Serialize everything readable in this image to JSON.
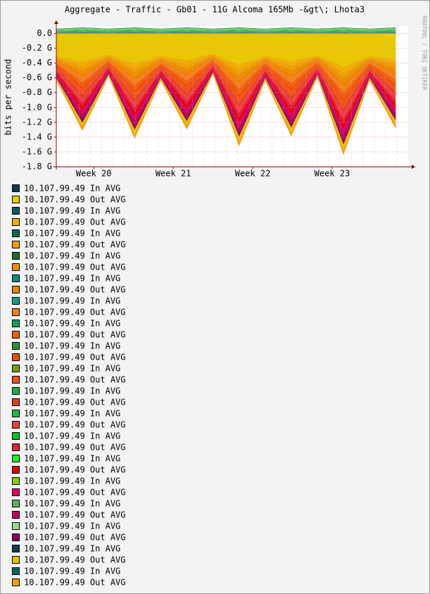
{
  "chart_data": {
    "type": "area",
    "stacked": true,
    "title": "Aggregate - Traffic - Gb01 - 11G Alcoma 165Mb -&gt\\; Lhota3",
    "ylabel": "bits per second",
    "watermark": "RRDTOOL / TOBI OETIKER",
    "x": [
      0,
      2.3,
      4.6,
      6.9,
      9.2,
      11.5,
      13.8,
      16.1,
      18.4,
      20.7,
      23,
      25.3,
      27.6,
      29.9
    ],
    "xlim": [
      0,
      31
    ],
    "xticks": [
      {
        "value": 3.3,
        "label": "Week 20"
      },
      {
        "value": 10.3,
        "label": "Week 21"
      },
      {
        "value": 17.3,
        "label": "Week 22"
      },
      {
        "value": 24.3,
        "label": "Week 23"
      }
    ],
    "ylim": [
      -1.8,
      0.1
    ],
    "yticks": [
      {
        "value": 0,
        "label": "0.0"
      },
      {
        "value": -0.2,
        "label": "-0.2 G"
      },
      {
        "value": -0.4,
        "label": "-0.4 G"
      },
      {
        "value": -0.6,
        "label": "-0.6 G"
      },
      {
        "value": -0.8,
        "label": "-0.8 G"
      },
      {
        "value": -1.0,
        "label": "-1.0 G"
      },
      {
        "value": -1.2,
        "label": "-1.2 G"
      },
      {
        "value": -1.4,
        "label": "-1.4 G"
      },
      {
        "value": -1.6,
        "label": "-1.6 G"
      },
      {
        "value": -1.8,
        "label": "-1.8 G"
      }
    ],
    "grid": true,
    "series": [
      {
        "name": "10.107.99.49 In AVG",
        "color": "#0a3d5c",
        "values": [
          0.0035,
          0.0045,
          0.0035,
          0.0045,
          0.0035,
          0.0045,
          0.0035,
          0.0045,
          0.0035,
          0.0045,
          0.0035,
          0.0045,
          0.0035,
          0.0045
        ]
      },
      {
        "name": "10.107.99.49 Out AVG",
        "color": "#e8c800",
        "values": [
          -0.3,
          -0.38,
          -0.28,
          -0.4,
          -0.3,
          -0.36,
          -0.27,
          -0.42,
          -0.3,
          -0.37,
          -0.29,
          -0.45,
          -0.3,
          -0.35
        ]
      },
      {
        "name": "10.107.99.49 In AVG",
        "color": "#0c5a60",
        "values": [
          0.0035,
          0.0045,
          0.0035,
          0.0045,
          0.0035,
          0.0045,
          0.0035,
          0.0045,
          0.0035,
          0.0045,
          0.0035,
          0.0045,
          0.0035,
          0.0045
        ]
      },
      {
        "name": "10.107.99.49 Out AVG",
        "color": "#f0b000",
        "values": [
          -0.02,
          -0.055,
          -0.018,
          -0.06,
          -0.02,
          -0.055,
          -0.017,
          -0.065,
          -0.02,
          -0.06,
          -0.018,
          -0.07,
          -0.02,
          -0.055
        ]
      },
      {
        "name": "10.107.99.49 In AVG",
        "color": "#106a5a",
        "values": [
          0.0035,
          0.0045,
          0.0035,
          0.0045,
          0.0035,
          0.0045,
          0.0035,
          0.0045,
          0.0035,
          0.0045,
          0.0035,
          0.0045,
          0.0035,
          0.0045
        ]
      },
      {
        "name": "10.107.99.49 Out AVG",
        "color": "#f0a000",
        "values": [
          -0.02,
          -0.055,
          -0.018,
          -0.06,
          -0.02,
          -0.055,
          -0.017,
          -0.065,
          -0.02,
          -0.06,
          -0.018,
          -0.07,
          -0.02,
          -0.055
        ]
      },
      {
        "name": "10.107.99.49 In AVG",
        "color": "#1a6e2e",
        "values": [
          0.0035,
          0.0045,
          0.0035,
          0.0045,
          0.0035,
          0.0045,
          0.0035,
          0.0045,
          0.0035,
          0.0045,
          0.0035,
          0.0045,
          0.0035,
          0.0045
        ]
      },
      {
        "name": "10.107.99.49 Out AVG",
        "color": "#e89000",
        "values": [
          -0.02,
          -0.055,
          -0.018,
          -0.06,
          -0.02,
          -0.055,
          -0.017,
          -0.065,
          -0.02,
          -0.06,
          -0.018,
          -0.07,
          -0.02,
          -0.055
        ]
      },
      {
        "name": "10.107.99.49 In AVG",
        "color": "#108a7a",
        "values": [
          0.0035,
          0.0045,
          0.0035,
          0.0045,
          0.0035,
          0.0045,
          0.0035,
          0.0045,
          0.0035,
          0.0045,
          0.0035,
          0.0045,
          0.0035,
          0.0045
        ]
      },
      {
        "name": "10.107.99.49 Out AVG",
        "color": "#f08000",
        "values": [
          -0.02,
          -0.055,
          -0.018,
          -0.06,
          -0.02,
          -0.055,
          -0.017,
          -0.065,
          -0.02,
          -0.06,
          -0.018,
          -0.07,
          -0.02,
          -0.055
        ]
      },
      {
        "name": "10.107.99.49 In AVG",
        "color": "#10a080",
        "values": [
          0.0035,
          0.0045,
          0.0035,
          0.0045,
          0.0035,
          0.0045,
          0.0035,
          0.0045,
          0.0035,
          0.0045,
          0.0035,
          0.0045,
          0.0035,
          0.0045
        ]
      },
      {
        "name": "10.107.99.49 Out AVG",
        "color": "#f08020",
        "values": [
          -0.02,
          -0.055,
          -0.018,
          -0.06,
          -0.02,
          -0.055,
          -0.017,
          -0.065,
          -0.02,
          -0.06,
          -0.018,
          -0.07,
          -0.02,
          -0.055
        ]
      },
      {
        "name": "10.107.99.49 In AVG",
        "color": "#10a060",
        "values": [
          0.0035,
          0.0045,
          0.0035,
          0.0045,
          0.0035,
          0.0045,
          0.0035,
          0.0045,
          0.0035,
          0.0045,
          0.0035,
          0.0045,
          0.0035,
          0.0045
        ]
      },
      {
        "name": "10.107.99.49 Out AVG",
        "color": "#f06010",
        "values": [
          -0.02,
          -0.055,
          -0.018,
          -0.06,
          -0.02,
          -0.055,
          -0.017,
          -0.065,
          -0.02,
          -0.06,
          -0.018,
          -0.07,
          -0.02,
          -0.055
        ]
      },
      {
        "name": "10.107.99.49 In AVG",
        "color": "#309030",
        "values": [
          0.0035,
          0.0045,
          0.0035,
          0.0045,
          0.0035,
          0.0045,
          0.0035,
          0.0045,
          0.0035,
          0.0045,
          0.0035,
          0.0045,
          0.0035,
          0.0045
        ]
      },
      {
        "name": "10.107.99.49 Out AVG",
        "color": "#f05000",
        "values": [
          -0.02,
          -0.055,
          -0.018,
          -0.06,
          -0.02,
          -0.055,
          -0.017,
          -0.065,
          -0.02,
          -0.06,
          -0.018,
          -0.07,
          -0.02,
          -0.055
        ]
      },
      {
        "name": "10.107.99.49 In AVG",
        "color": "#70a010",
        "values": [
          0.0035,
          0.0045,
          0.0035,
          0.0045,
          0.0035,
          0.0045,
          0.0035,
          0.0045,
          0.0035,
          0.0045,
          0.0035,
          0.0045,
          0.0035,
          0.0045
        ]
      },
      {
        "name": "10.107.99.49 Out AVG",
        "color": "#f05020",
        "values": [
          -0.02,
          -0.055,
          -0.018,
          -0.06,
          -0.02,
          -0.055,
          -0.017,
          -0.065,
          -0.02,
          -0.06,
          -0.018,
          -0.07,
          -0.02,
          -0.055
        ]
      },
      {
        "name": "10.107.99.49 In AVG",
        "color": "#20b040",
        "values": [
          0.0035,
          0.0045,
          0.0035,
          0.0045,
          0.0035,
          0.0045,
          0.0035,
          0.0045,
          0.0035,
          0.0045,
          0.0035,
          0.0045,
          0.0035,
          0.0045
        ]
      },
      {
        "name": "10.107.99.49 Out AVG",
        "color": "#e04020",
        "values": [
          -0.02,
          -0.055,
          -0.018,
          -0.06,
          -0.02,
          -0.055,
          -0.017,
          -0.065,
          -0.02,
          -0.06,
          -0.018,
          -0.07,
          -0.02,
          -0.055
        ]
      },
      {
        "name": "10.107.99.49 In AVG",
        "color": "#10c040",
        "values": [
          0.0035,
          0.0045,
          0.0035,
          0.0045,
          0.0035,
          0.0045,
          0.0035,
          0.0045,
          0.0035,
          0.0045,
          0.0035,
          0.0045,
          0.0035,
          0.0045
        ]
      },
      {
        "name": "10.107.99.49 Out AVG",
        "color": "#f04040",
        "values": [
          -0.02,
          -0.055,
          -0.018,
          -0.06,
          -0.02,
          -0.055,
          -0.017,
          -0.065,
          -0.02,
          -0.06,
          -0.018,
          -0.07,
          -0.02,
          -0.055
        ]
      },
      {
        "name": "10.107.99.49 In AVG",
        "color": "#10c020",
        "values": [
          0.0035,
          0.0045,
          0.0035,
          0.0045,
          0.0035,
          0.0045,
          0.0035,
          0.0045,
          0.0035,
          0.0045,
          0.0035,
          0.0045,
          0.0035,
          0.0045
        ]
      },
      {
        "name": "10.107.99.49 Out AVG",
        "color": "#e02040",
        "values": [
          -0.02,
          -0.055,
          -0.018,
          -0.06,
          -0.02,
          -0.055,
          -0.017,
          -0.065,
          -0.02,
          -0.06,
          -0.018,
          -0.07,
          -0.02,
          -0.055
        ]
      },
      {
        "name": "10.107.99.49 In AVG",
        "color": "#20f020",
        "values": [
          0.0035,
          0.0045,
          0.0035,
          0.0045,
          0.0035,
          0.0045,
          0.0035,
          0.0045,
          0.0035,
          0.0045,
          0.0035,
          0.0045,
          0.0035,
          0.0045
        ]
      },
      {
        "name": "10.107.99.49 Out AVG",
        "color": "#e00000",
        "values": [
          -0.02,
          -0.055,
          -0.018,
          -0.06,
          -0.02,
          -0.055,
          -0.017,
          -0.065,
          -0.02,
          -0.06,
          -0.018,
          -0.07,
          -0.02,
          -0.055
        ]
      },
      {
        "name": "10.107.99.49 In AVG",
        "color": "#80d010",
        "values": [
          0.0035,
          0.0045,
          0.0035,
          0.0045,
          0.0035,
          0.0045,
          0.0035,
          0.0045,
          0.0035,
          0.0045,
          0.0035,
          0.0045,
          0.0035,
          0.0045
        ]
      },
      {
        "name": "10.107.99.49 Out AVG",
        "color": "#e00060",
        "values": [
          -0.02,
          -0.055,
          -0.018,
          -0.06,
          -0.02,
          -0.055,
          -0.017,
          -0.065,
          -0.02,
          -0.06,
          -0.018,
          -0.07,
          -0.02,
          -0.055
        ]
      },
      {
        "name": "10.107.99.49 In AVG",
        "color": "#60b060",
        "values": [
          0.0035,
          0.0045,
          0.0035,
          0.0045,
          0.0035,
          0.0045,
          0.0035,
          0.0045,
          0.0035,
          0.0045,
          0.0035,
          0.0045,
          0.0035,
          0.0045
        ]
      },
      {
        "name": "10.107.99.49 Out AVG",
        "color": "#c00060",
        "values": [
          -0.02,
          -0.055,
          -0.018,
          -0.06,
          -0.02,
          -0.055,
          -0.017,
          -0.065,
          -0.02,
          -0.06,
          -0.018,
          -0.07,
          -0.02,
          -0.055
        ]
      },
      {
        "name": "10.107.99.49 In AVG",
        "color": "#90e090",
        "values": [
          0.0035,
          0.0045,
          0.0035,
          0.0045,
          0.0035,
          0.0045,
          0.0035,
          0.0045,
          0.0035,
          0.0045,
          0.0035,
          0.0045,
          0.0035,
          0.0045
        ]
      },
      {
        "name": "10.107.99.49 Out AVG",
        "color": "#900060",
        "values": [
          -0.02,
          -0.055,
          -0.018,
          -0.06,
          -0.02,
          -0.055,
          -0.017,
          -0.065,
          -0.02,
          -0.06,
          -0.018,
          -0.07,
          -0.02,
          -0.055
        ]
      },
      {
        "name": "10.107.99.49 In AVG",
        "color": "#104060",
        "values": [
          0.0035,
          0.0045,
          0.0035,
          0.0045,
          0.0035,
          0.0045,
          0.0035,
          0.0045,
          0.0035,
          0.0045,
          0.0035,
          0.0045,
          0.0035,
          0.0045
        ]
      },
      {
        "name": "10.107.99.49 Out AVG",
        "color": "#e8c000",
        "values": [
          -0.02,
          -0.055,
          -0.018,
          -0.06,
          -0.02,
          -0.055,
          -0.017,
          -0.065,
          -0.02,
          -0.06,
          -0.018,
          -0.07,
          -0.02,
          -0.055
        ]
      },
      {
        "name": "10.107.99.49 In AVG",
        "color": "#106060",
        "values": [
          0.0035,
          0.0045,
          0.0035,
          0.0045,
          0.0035,
          0.0045,
          0.0035,
          0.0045,
          0.0035,
          0.0045,
          0.0035,
          0.0045,
          0.0035,
          0.0045
        ]
      },
      {
        "name": "10.107.99.49 Out AVG",
        "color": "#f0a000",
        "values": [
          -0.02,
          -0.055,
          -0.018,
          -0.06,
          -0.02,
          -0.055,
          -0.017,
          -0.065,
          -0.02,
          -0.06,
          -0.018,
          -0.07,
          -0.02,
          -0.055
        ]
      }
    ]
  }
}
